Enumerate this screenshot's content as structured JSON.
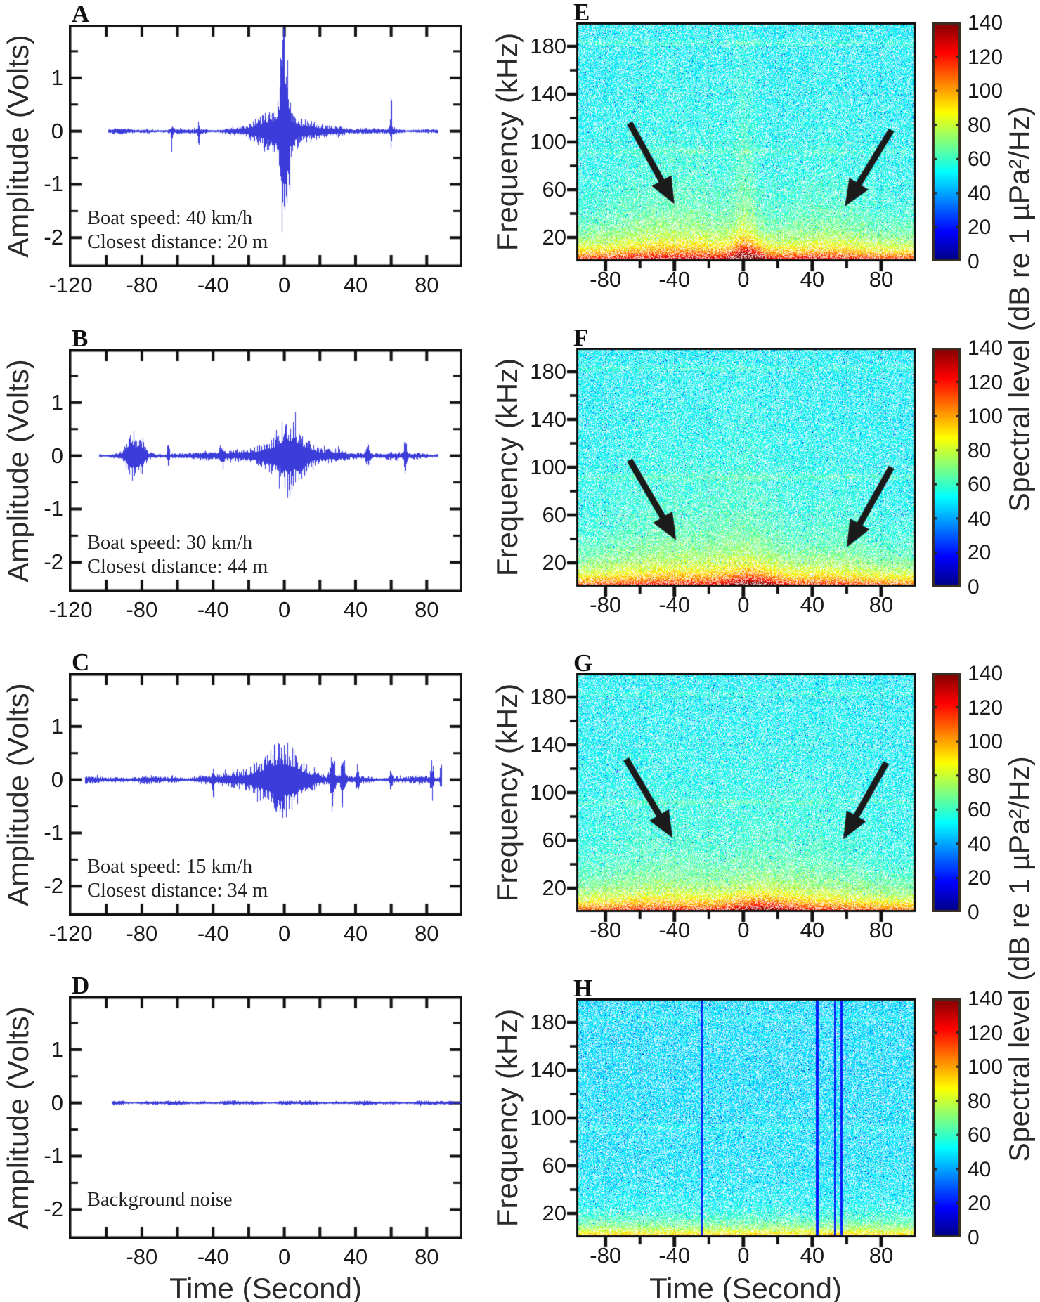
{
  "figure": {
    "background": "#ffffff",
    "axis_color": "#111111",
    "waveform_color": "#3032d8",
    "arrow_color": "#1b1b1b",
    "x_axis_title": "Time (Second)",
    "amplitude_axis_title": "Amplitude (Volts)",
    "frequency_axis_title": "Frequency (kHz)",
    "colorbar_title": "Spectral level (dB re 1 µPa²/Hz)"
  },
  "chart_data": [
    {
      "id": "A",
      "type": "line",
      "kind": "waveform",
      "annotation": [
        "Boat speed: 40 km/h",
        "Closest distance: 20 m"
      ],
      "xlabel": "Time (Second)",
      "ylabel": "Amplitude (Volts)",
      "xlim": [
        -121,
        100
      ],
      "ylim": [
        -2.55,
        2.0
      ],
      "x_tick_labels": [
        -120,
        -80,
        -40,
        0,
        40,
        80
      ],
      "y_tick_labels": [
        1,
        0,
        -1,
        -2
      ],
      "x_minor_step": 20,
      "y_minor_step": 0.5,
      "signal": {
        "trange": [
          -99,
          86
        ],
        "noise_base": 0.045,
        "seed": 11,
        "events": [
          {
            "t": 0,
            "amp_pos": 1.95,
            "amp_neg": 2.2,
            "width": 2.4,
            "label": "closest-approach spike"
          },
          {
            "t": -4,
            "amp": 0.3,
            "width": 12
          },
          {
            "t": 6,
            "amp": 0.12,
            "width": 26
          },
          {
            "t": 60,
            "amp_pos": 0.6,
            "amp_neg": 0.3,
            "width": 0.5
          },
          {
            "t": -48,
            "amp_pos": 0.15,
            "amp_neg": 0.45,
            "width": 0.45
          },
          {
            "t": -63,
            "amp_pos": 0.12,
            "amp_neg": 0.3,
            "width": 0.4
          }
        ]
      }
    },
    {
      "id": "B",
      "type": "line",
      "kind": "waveform",
      "annotation": [
        "Boat speed: 30 km/h",
        "Closest distance: 44 m"
      ],
      "xlabel": "Time (Second)",
      "ylabel": "Amplitude (Volts)",
      "xlim": [
        -121,
        100
      ],
      "ylim": [
        -2.55,
        2.0
      ],
      "x_tick_labels": [
        -120,
        -80,
        -40,
        0,
        40,
        80
      ],
      "y_tick_labels": [
        1,
        0,
        -1,
        -2
      ],
      "x_minor_step": 20,
      "y_minor_step": 0.5,
      "signal": {
        "trange": [
          -104,
          86
        ],
        "noise_base": 0.055,
        "seed": 22,
        "events": [
          {
            "t": -86,
            "amp": 0.5,
            "width": 3.0,
            "label": "pre-pass burst"
          },
          {
            "t": -80,
            "amp": 0.33,
            "width": 2.0
          },
          {
            "t": -65,
            "amp": 0.3,
            "width": 0.5
          },
          {
            "t": 3,
            "amp": 0.52,
            "width": 9,
            "label": "closest-approach"
          },
          {
            "t": 0,
            "amp": 0.15,
            "width": 30
          },
          {
            "t": -35,
            "amp": 0.2,
            "width": 1.2
          },
          {
            "t": 47,
            "amp": 0.22,
            "width": 1.0
          },
          {
            "t": 68,
            "amp": 0.3,
            "width": 0.8
          }
        ]
      }
    },
    {
      "id": "C",
      "type": "line",
      "kind": "waveform",
      "annotation": [
        "Boat speed: 15 km/h",
        "Closest distance: 34 m"
      ],
      "xlabel": "Time (Second)",
      "ylabel": "Amplitude (Volts)",
      "xlim": [
        -121,
        100
      ],
      "ylim": [
        -2.55,
        2.0
      ],
      "x_tick_labels": [
        -120,
        -80,
        -40,
        0,
        40,
        80
      ],
      "y_tick_labels": [
        1,
        0,
        -1,
        -2
      ],
      "x_minor_step": 20,
      "y_minor_step": 0.5,
      "signal": {
        "trange": [
          -112,
          88
        ],
        "noise_base": 0.06,
        "seed": 33,
        "events": [
          {
            "t": -1,
            "amp": 0.46,
            "width": 12,
            "label": "closest-approach"
          },
          {
            "t": -6,
            "amp": 0.2,
            "width": 25
          },
          {
            "t": -40,
            "amp_pos": 0.2,
            "amp_neg": 0.45,
            "width": 0.6
          },
          {
            "t": 27,
            "amp": 0.5,
            "width": 1.2
          },
          {
            "t": 33,
            "amp": 0.4,
            "width": 1.0
          },
          {
            "t": 41,
            "amp": 0.28,
            "width": 0.8
          },
          {
            "t": 60,
            "amp": 0.26,
            "width": 0.7
          },
          {
            "t": 83,
            "amp": 0.34,
            "width": 0.8
          },
          {
            "t": 88,
            "amp": 0.3,
            "width": 0.6
          }
        ]
      }
    },
    {
      "id": "D",
      "type": "line",
      "kind": "waveform",
      "annotation": [
        "Background noise"
      ],
      "xlabel": "Time (Second)",
      "ylabel": "Amplitude (Volts)",
      "xlim": [
        -121,
        100
      ],
      "ylim": [
        -2.55,
        2.0
      ],
      "x_tick_labels": [
        -80,
        -40,
        0,
        40,
        80
      ],
      "y_tick_labels": [
        1,
        0,
        -1,
        -2
      ],
      "x_minor_step": 20,
      "y_minor_step": 0.5,
      "signal": {
        "trange": [
          -97,
          100
        ],
        "noise_base": 0.035,
        "seed": 44,
        "events": []
      }
    },
    {
      "id": "E",
      "type": "heatmap",
      "kind": "spectrogram",
      "xlabel": "Time (Second)",
      "ylabel": "Frequency (kHz)",
      "xlim": [
        -97,
        100
      ],
      "ylim": [
        0,
        200
      ],
      "x_tick_labels": [
        -80,
        -40,
        0,
        40,
        80
      ],
      "y_tick_labels": [
        20,
        60,
        100,
        140,
        180
      ],
      "x_minor_step": 20,
      "y_minor_step": 20,
      "colorbar": {
        "min": 0,
        "max": 140,
        "ticks": [
          140,
          120,
          100,
          80,
          60,
          40,
          20,
          0
        ],
        "title": "Spectral level (dB re 1 µPa²/Hz)"
      },
      "base_db": 50,
      "noise_db": 14,
      "seed": 55,
      "features": [
        {
          "amp": 6,
          "f_scale": 90,
          "note": "overall low-frequency warm gradient"
        },
        {
          "amp": 48,
          "f_scale": 16,
          "note": "broadband low-frequency band"
        },
        {
          "amp": 30,
          "f_scale": 6,
          "note": "very low frequency band"
        },
        {
          "t": -38,
          "t_width": 42,
          "amp": 16,
          "f_scale": 70,
          "note": "approach noise wash"
        },
        {
          "t": 48,
          "t_width": 26,
          "amp": 10,
          "f_scale": 70,
          "note": "departure noise wash"
        },
        {
          "t": 1,
          "t_width": 7,
          "amp": 14,
          "f_scale": 120,
          "note": "closest-pass plume"
        },
        {
          "t": 3,
          "t_width": 10,
          "amp": 45,
          "f_scale": 10,
          "note": "closest-pass hot core"
        },
        {
          "f_line": 183,
          "amp": 6
        },
        {
          "f_line": 92,
          "amp": 5
        }
      ],
      "arrows": [
        {
          "from": [
            -66,
            116
          ],
          "to": [
            -40,
            48
          ],
          "note": "boat noise onset"
        },
        {
          "from": [
            86,
            110
          ],
          "to": [
            59,
            46
          ],
          "note": "boat noise tail"
        }
      ],
      "vertical_lines": []
    },
    {
      "id": "F",
      "type": "heatmap",
      "kind": "spectrogram",
      "xlabel": "Time (Second)",
      "ylabel": "Frequency (kHz)",
      "xlim": [
        -97,
        100
      ],
      "ylim": [
        0,
        200
      ],
      "x_tick_labels": [
        -80,
        -40,
        0,
        40,
        80
      ],
      "y_tick_labels": [
        20,
        60,
        100,
        140,
        180
      ],
      "x_minor_step": 20,
      "y_minor_step": 20,
      "colorbar": {
        "min": 0,
        "max": 140,
        "ticks": [
          140,
          120,
          100,
          80,
          60,
          40,
          20,
          0
        ],
        "title": "Spectral level (dB re 1 µPa²/Hz)"
      },
      "base_db": 50,
      "noise_db": 14,
      "seed": 66,
      "features": [
        {
          "amp": 6,
          "f_scale": 90
        },
        {
          "amp": 44,
          "f_scale": 16
        },
        {
          "amp": 22,
          "f_scale": 6
        },
        {
          "t": -42,
          "t_width": 40,
          "amp": 14,
          "f_scale": 75
        },
        {
          "t": 50,
          "t_width": 25,
          "amp": 9,
          "f_scale": 70
        },
        {
          "t": 2,
          "t_width": 22,
          "amp": 12,
          "f_scale": 90
        },
        {
          "t": 6,
          "t_width": 14,
          "amp": 34,
          "f_scale": 9
        },
        {
          "f_line": 183,
          "amp": 5
        },
        {
          "f_line": 92,
          "amp": 6
        }
      ],
      "arrows": [
        {
          "from": [
            -66,
            106
          ],
          "to": [
            -39,
            39
          ]
        },
        {
          "from": [
            86,
            100
          ],
          "to": [
            60,
            33
          ]
        }
      ],
      "vertical_lines": []
    },
    {
      "id": "G",
      "type": "heatmap",
      "kind": "spectrogram",
      "xlabel": "Time (Second)",
      "ylabel": "Frequency (kHz)",
      "xlim": [
        -97,
        100
      ],
      "ylim": [
        0,
        200
      ],
      "x_tick_labels": [
        -80,
        -40,
        0,
        40,
        80
      ],
      "y_tick_labels": [
        20,
        60,
        100,
        140,
        180
      ],
      "x_minor_step": 20,
      "y_minor_step": 20,
      "colorbar": {
        "min": 0,
        "max": 140,
        "ticks": [
          140,
          120,
          100,
          80,
          60,
          40,
          20,
          0
        ],
        "title": "Spectral level (dB re 1 µPa²/Hz)"
      },
      "base_db": 50,
      "noise_db": 14,
      "seed": 77,
      "features": [
        {
          "amp": 6,
          "f_scale": 90
        },
        {
          "amp": 46,
          "f_scale": 15
        },
        {
          "amp": 20,
          "f_scale": 6
        },
        {
          "t": -48,
          "t_width": 40,
          "amp": 11,
          "f_scale": 80
        },
        {
          "t": 45,
          "t_width": 30,
          "amp": 9,
          "f_scale": 80
        },
        {
          "t": 8,
          "t_width": 26,
          "amp": 10,
          "f_scale": 70
        },
        {
          "t": 10,
          "t_width": 18,
          "amp": 30,
          "f_scale": 8
        },
        {
          "f_line": 183,
          "amp": 5
        },
        {
          "f_line": 92,
          "amp": 5
        }
      ],
      "arrows": [
        {
          "from": [
            -68,
            128
          ],
          "to": [
            -41,
            62
          ]
        },
        {
          "from": [
            83,
            125
          ],
          "to": [
            58,
            61
          ]
        }
      ],
      "vertical_lines": []
    },
    {
      "id": "H",
      "type": "heatmap",
      "kind": "spectrogram",
      "xlabel": "Time (Second)",
      "ylabel": "Frequency (kHz)",
      "xlim": [
        -97,
        100
      ],
      "ylim": [
        0,
        200
      ],
      "x_tick_labels": [
        -80,
        -40,
        0,
        40,
        80
      ],
      "y_tick_labels": [
        20,
        60,
        100,
        140,
        180
      ],
      "x_minor_step": 20,
      "y_minor_step": 20,
      "colorbar": {
        "min": 0,
        "max": 140,
        "ticks": [
          140,
          120,
          100,
          80,
          60,
          40,
          20,
          0
        ],
        "title": "Spectral level (dB re 1 µPa²/Hz)"
      },
      "base_db": 47,
      "noise_db": 13,
      "seed": 88,
      "features": [
        {
          "amp": 3,
          "f_scale": 90
        },
        {
          "amp": 46,
          "f_scale": 11
        },
        {
          "amp": 14,
          "f_scale": 5
        },
        {
          "f_line": 183,
          "amp": 4
        },
        {
          "f_line": 92,
          "amp": 5
        }
      ],
      "arrows": [],
      "vertical_lines": [
        {
          "t": -24,
          "width": 0.9,
          "note": "recording gap artifact"
        },
        {
          "t": 43,
          "width": 1.5
        },
        {
          "t": 53,
          "width": 0.8
        },
        {
          "t": 57,
          "width": 1.0
        }
      ]
    }
  ]
}
